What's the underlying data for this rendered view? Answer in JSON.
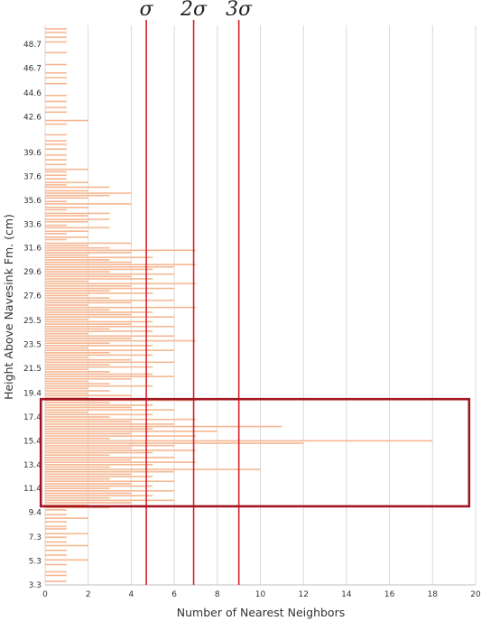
{
  "chart_data": {
    "type": "bar",
    "orientation": "horizontal",
    "title": "",
    "xlabel": "Number of Nearest Neighbors",
    "ylabel": "Height Above Navesink Fm. (cm)",
    "xlim": [
      0,
      20
    ],
    "ylim": [
      3.3,
      50.3
    ],
    "x_ticks": [
      "0",
      "2",
      "4",
      "6",
      "8",
      "10",
      "12",
      "14",
      "16",
      "18",
      "20"
    ],
    "y_ticks": [
      {
        "value": 3.3,
        "label": "3.3"
      },
      {
        "value": 5.3,
        "label": "5.3"
      },
      {
        "value": 7.3,
        "label": "7.3"
      },
      {
        "value": 9.4,
        "label": "9.4"
      },
      {
        "value": 11.4,
        "label": "11.4"
      },
      {
        "value": 13.4,
        "label": "13.4"
      },
      {
        "value": 15.4,
        "label": "15.4"
      },
      {
        "value": 17.4,
        "label": "17.4"
      },
      {
        "value": 19.4,
        "label": "19.4"
      },
      {
        "value": 21.5,
        "label": "21.5"
      },
      {
        "value": 23.5,
        "label": "23.5"
      },
      {
        "value": 25.5,
        "label": "25.5"
      },
      {
        "value": 27.6,
        "label": "27.6"
      },
      {
        "value": 29.6,
        "label": "29.6"
      },
      {
        "value": 31.6,
        "label": "31.6"
      },
      {
        "value": 33.6,
        "label": "33.6"
      },
      {
        "value": 35.6,
        "label": "35.6"
      },
      {
        "value": 37.6,
        "label": "37.6"
      },
      {
        "value": 39.6,
        "label": "39.6"
      },
      {
        "value": 42.6,
        "label": "42.6"
      },
      {
        "value": 44.6,
        "label": "44.6"
      },
      {
        "value": 46.7,
        "label": "46.7"
      },
      {
        "value": 48.7,
        "label": "48.7"
      }
    ],
    "grid": true,
    "thresholds": [
      {
        "label": "σ",
        "x": 4.7
      },
      {
        "label": "2σ",
        "x": 6.9
      },
      {
        "label": "3σ",
        "x": 9.0
      }
    ],
    "highlight_region": {
      "x": [
        -0.2,
        19.7
      ],
      "y": [
        9.9,
        18.9
      ]
    },
    "bars": [
      {
        "y": 50.0,
        "x": 1
      },
      {
        "y": 49.7,
        "x": 1
      },
      {
        "y": 49.3,
        "x": 1
      },
      {
        "y": 48.9,
        "x": 1
      },
      {
        "y": 48.0,
        "x": 1
      },
      {
        "y": 47.0,
        "x": 1
      },
      {
        "y": 46.3,
        "x": 1
      },
      {
        "y": 45.9,
        "x": 1
      },
      {
        "y": 45.4,
        "x": 1
      },
      {
        "y": 44.4,
        "x": 1
      },
      {
        "y": 43.9,
        "x": 1
      },
      {
        "y": 43.4,
        "x": 1
      },
      {
        "y": 43.0,
        "x": 1
      },
      {
        "y": 42.3,
        "x": 2
      },
      {
        "y": 42.0,
        "x": 1
      },
      {
        "y": 41.1,
        "x": 1
      },
      {
        "y": 40.6,
        "x": 1
      },
      {
        "y": 40.3,
        "x": 1
      },
      {
        "y": 39.9,
        "x": 1
      },
      {
        "y": 39.4,
        "x": 1
      },
      {
        "y": 39.0,
        "x": 1
      },
      {
        "y": 38.6,
        "x": 1
      },
      {
        "y": 38.2,
        "x": 2
      },
      {
        "y": 38.0,
        "x": 1
      },
      {
        "y": 37.7,
        "x": 1
      },
      {
        "y": 37.4,
        "x": 1
      },
      {
        "y": 37.1,
        "x": 2
      },
      {
        "y": 36.9,
        "x": 1
      },
      {
        "y": 36.7,
        "x": 3
      },
      {
        "y": 36.4,
        "x": 2
      },
      {
        "y": 36.2,
        "x": 4
      },
      {
        "y": 36.0,
        "x": 3
      },
      {
        "y": 35.8,
        "x": 2
      },
      {
        "y": 35.5,
        "x": 1
      },
      {
        "y": 35.3,
        "x": 4
      },
      {
        "y": 35.0,
        "x": 2
      },
      {
        "y": 34.8,
        "x": 1
      },
      {
        "y": 34.5,
        "x": 3
      },
      {
        "y": 34.3,
        "x": 2
      },
      {
        "y": 34.0,
        "x": 3
      },
      {
        "y": 33.8,
        "x": 2
      },
      {
        "y": 33.5,
        "x": 1
      },
      {
        "y": 33.3,
        "x": 3
      },
      {
        "y": 33.0,
        "x": 2
      },
      {
        "y": 32.8,
        "x": 1
      },
      {
        "y": 32.5,
        "x": 2
      },
      {
        "y": 32.3,
        "x": 1
      },
      {
        "y": 32.0,
        "x": 4
      },
      {
        "y": 31.8,
        "x": 2
      },
      {
        "y": 31.6,
        "x": 3
      },
      {
        "y": 31.4,
        "x": 7
      },
      {
        "y": 31.2,
        "x": 4
      },
      {
        "y": 31.0,
        "x": 2
      },
      {
        "y": 30.8,
        "x": 5
      },
      {
        "y": 30.6,
        "x": 3
      },
      {
        "y": 30.4,
        "x": 4
      },
      {
        "y": 30.2,
        "x": 7
      },
      {
        "y": 30.0,
        "x": 6
      },
      {
        "y": 29.8,
        "x": 5
      },
      {
        "y": 29.6,
        "x": 3
      },
      {
        "y": 29.4,
        "x": 6
      },
      {
        "y": 29.2,
        "x": 4
      },
      {
        "y": 29.0,
        "x": 5
      },
      {
        "y": 28.8,
        "x": 2
      },
      {
        "y": 28.6,
        "x": 7
      },
      {
        "y": 28.4,
        "x": 4
      },
      {
        "y": 28.2,
        "x": 6
      },
      {
        "y": 28.0,
        "x": 3
      },
      {
        "y": 27.8,
        "x": 5
      },
      {
        "y": 27.6,
        "x": 2
      },
      {
        "y": 27.4,
        "x": 3
      },
      {
        "y": 27.2,
        "x": 6
      },
      {
        "y": 27.0,
        "x": 4
      },
      {
        "y": 26.8,
        "x": 2
      },
      {
        "y": 26.6,
        "x": 7
      },
      {
        "y": 26.4,
        "x": 3
      },
      {
        "y": 26.2,
        "x": 5
      },
      {
        "y": 26.0,
        "x": 4
      },
      {
        "y": 25.8,
        "x": 6
      },
      {
        "y": 25.6,
        "x": 2
      },
      {
        "y": 25.4,
        "x": 5
      },
      {
        "y": 25.2,
        "x": 4
      },
      {
        "y": 25.0,
        "x": 6
      },
      {
        "y": 24.8,
        "x": 3
      },
      {
        "y": 24.6,
        "x": 5
      },
      {
        "y": 24.4,
        "x": 2
      },
      {
        "y": 24.2,
        "x": 6
      },
      {
        "y": 24.0,
        "x": 4
      },
      {
        "y": 23.8,
        "x": 7
      },
      {
        "y": 23.6,
        "x": 3
      },
      {
        "y": 23.4,
        "x": 5
      },
      {
        "y": 23.2,
        "x": 2
      },
      {
        "y": 23.0,
        "x": 6
      },
      {
        "y": 22.8,
        "x": 3
      },
      {
        "y": 22.6,
        "x": 5
      },
      {
        "y": 22.4,
        "x": 2
      },
      {
        "y": 22.2,
        "x": 4
      },
      {
        "y": 22.0,
        "x": 6
      },
      {
        "y": 21.8,
        "x": 3
      },
      {
        "y": 21.6,
        "x": 5
      },
      {
        "y": 21.4,
        "x": 2
      },
      {
        "y": 21.2,
        "x": 3
      },
      {
        "y": 21.0,
        "x": 5
      },
      {
        "y": 20.8,
        "x": 6
      },
      {
        "y": 20.6,
        "x": 4
      },
      {
        "y": 20.4,
        "x": 2
      },
      {
        "y": 20.2,
        "x": 3
      },
      {
        "y": 20.0,
        "x": 5
      },
      {
        "y": 19.8,
        "x": 2
      },
      {
        "y": 19.6,
        "x": 3
      },
      {
        "y": 19.4,
        "x": 2
      },
      {
        "y": 19.2,
        "x": 4
      },
      {
        "y": 19.0,
        "x": 2
      },
      {
        "y": 18.8,
        "x": 7
      },
      {
        "y": 18.6,
        "x": 3
      },
      {
        "y": 18.4,
        "x": 5
      },
      {
        "y": 18.2,
        "x": 4
      },
      {
        "y": 18.0,
        "x": 6
      },
      {
        "y": 17.8,
        "x": 2
      },
      {
        "y": 17.6,
        "x": 5
      },
      {
        "y": 17.4,
        "x": 3
      },
      {
        "y": 17.2,
        "x": 7
      },
      {
        "y": 17.0,
        "x": 4
      },
      {
        "y": 16.8,
        "x": 6
      },
      {
        "y": 16.6,
        "x": 11
      },
      {
        "y": 16.4,
        "x": 5
      },
      {
        "y": 16.2,
        "x": 8
      },
      {
        "y": 16.0,
        "x": 4
      },
      {
        "y": 15.8,
        "x": 7
      },
      {
        "y": 15.6,
        "x": 3
      },
      {
        "y": 15.4,
        "x": 18
      },
      {
        "y": 15.2,
        "x": 12
      },
      {
        "y": 15.0,
        "x": 6
      },
      {
        "y": 14.8,
        "x": 4
      },
      {
        "y": 14.6,
        "x": 7
      },
      {
        "y": 14.4,
        "x": 5
      },
      {
        "y": 14.2,
        "x": 3
      },
      {
        "y": 14.0,
        "x": 6
      },
      {
        "y": 13.8,
        "x": 4
      },
      {
        "y": 13.6,
        "x": 7
      },
      {
        "y": 13.4,
        "x": 5
      },
      {
        "y": 13.2,
        "x": 3
      },
      {
        "y": 13.0,
        "x": 10
      },
      {
        "y": 12.8,
        "x": 6
      },
      {
        "y": 12.6,
        "x": 4
      },
      {
        "y": 12.4,
        "x": 5
      },
      {
        "y": 12.2,
        "x": 3
      },
      {
        "y": 12.0,
        "x": 6
      },
      {
        "y": 11.8,
        "x": 4
      },
      {
        "y": 11.6,
        "x": 5
      },
      {
        "y": 11.4,
        "x": 3
      },
      {
        "y": 11.2,
        "x": 6
      },
      {
        "y": 11.0,
        "x": 4
      },
      {
        "y": 10.8,
        "x": 5
      },
      {
        "y": 10.6,
        "x": 3
      },
      {
        "y": 10.4,
        "x": 6
      },
      {
        "y": 10.2,
        "x": 4
      },
      {
        "y": 10.0,
        "x": 2
      },
      {
        "y": 9.8,
        "x": 3
      },
      {
        "y": 9.6,
        "x": 1
      },
      {
        "y": 9.2,
        "x": 1
      },
      {
        "y": 8.9,
        "x": 2
      },
      {
        "y": 8.6,
        "x": 1
      },
      {
        "y": 8.2,
        "x": 1
      },
      {
        "y": 8.0,
        "x": 1
      },
      {
        "y": 7.6,
        "x": 2
      },
      {
        "y": 7.3,
        "x": 1
      },
      {
        "y": 6.9,
        "x": 1
      },
      {
        "y": 6.6,
        "x": 2
      },
      {
        "y": 6.2,
        "x": 1
      },
      {
        "y": 5.8,
        "x": 1
      },
      {
        "y": 5.4,
        "x": 2
      },
      {
        "y": 5.0,
        "x": 1
      },
      {
        "y": 4.4,
        "x": 1
      },
      {
        "y": 4.1,
        "x": 1
      },
      {
        "y": 3.6,
        "x": 1
      }
    ],
    "colors": {
      "bar": "#f6b792",
      "bar_fill": "#f9cfb3",
      "threshold": "#d8232a",
      "highlight": "#a31621",
      "grid": "#d9d9d9"
    }
  }
}
